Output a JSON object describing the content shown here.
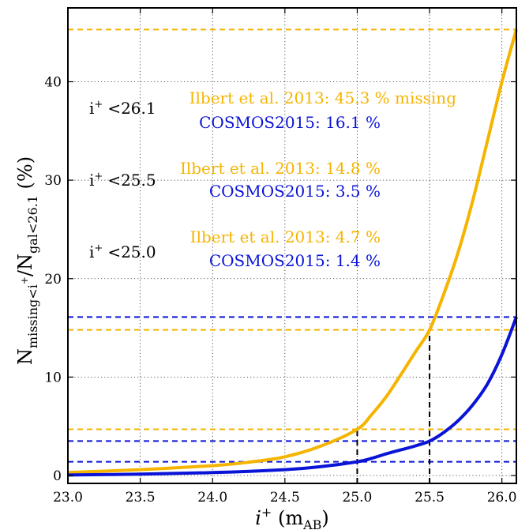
{
  "chart_data": {
    "type": "line",
    "xlabel": {
      "main": "i",
      "sup": "+",
      "rest": " (m",
      "sub": "AB",
      "close": ")"
    },
    "ylabel": {
      "n1": "N",
      "sub1": "missing<i",
      "sup1": "+",
      "slash": "/N",
      "sub2": "gal<26.1",
      "unit": " (%)"
    },
    "xlim": [
      23.0,
      26.1
    ],
    "ylim": [
      -0.8,
      47.5
    ],
    "xticks": [
      "23.0",
      "23.5",
      "24.0",
      "24.5",
      "25.0",
      "25.5",
      "26.0"
    ],
    "yticks": [
      "0",
      "10",
      "20",
      "30",
      "40"
    ],
    "grid": true,
    "colors": {
      "ilbert": "#f5b400",
      "cosmos": "#0a14d6",
      "black": "#000000"
    },
    "series": [
      {
        "name": "Ilbert et al. 2013",
        "color": "#f5b400",
        "points": [
          [
            23.0,
            0.3
          ],
          [
            23.5,
            0.6
          ],
          [
            24.0,
            1.0
          ],
          [
            24.25,
            1.35
          ],
          [
            24.5,
            1.9
          ],
          [
            24.75,
            3.0
          ],
          [
            25.0,
            4.7
          ],
          [
            25.1,
            6.2
          ],
          [
            25.2,
            8.0
          ],
          [
            25.3,
            10.2
          ],
          [
            25.4,
            12.5
          ],
          [
            25.5,
            14.8
          ],
          [
            25.6,
            18.5
          ],
          [
            25.7,
            22.8
          ],
          [
            25.8,
            28.0
          ],
          [
            25.9,
            34.0
          ],
          [
            26.0,
            40.0
          ],
          [
            26.1,
            45.3
          ]
        ]
      },
      {
        "name": "COSMOS2015",
        "color": "#0a14d6",
        "points": [
          [
            23.0,
            0.05
          ],
          [
            23.5,
            0.15
          ],
          [
            24.0,
            0.3
          ],
          [
            24.5,
            0.6
          ],
          [
            24.75,
            0.9
          ],
          [
            25.0,
            1.4
          ],
          [
            25.1,
            1.75
          ],
          [
            25.2,
            2.2
          ],
          [
            25.3,
            2.6
          ],
          [
            25.4,
            3.0
          ],
          [
            25.5,
            3.5
          ],
          [
            25.6,
            4.4
          ],
          [
            25.7,
            5.6
          ],
          [
            25.8,
            7.2
          ],
          [
            25.9,
            9.3
          ],
          [
            26.0,
            12.3
          ],
          [
            26.1,
            16.1
          ]
        ]
      }
    ],
    "hlines": [
      {
        "y": 45.3,
        "color": "#f5b400"
      },
      {
        "y": 16.1,
        "color": "#0a14d6"
      },
      {
        "y": 14.8,
        "color": "#f5b400"
      },
      {
        "y": 4.7,
        "color": "#f5b400"
      },
      {
        "y": 3.5,
        "color": "#0a14d6"
      },
      {
        "y": 1.4,
        "color": "#0a14d6"
      }
    ],
    "vlines": [
      {
        "x": 25.0,
        "ytop": 4.7,
        "color": "#000000"
      },
      {
        "x": 25.5,
        "ytop": 14.8,
        "color": "#000000"
      }
    ],
    "annotations": [
      {
        "cut": "<26.1",
        "ilbert": "Ilbert et al. 2013: 45.3 % missing",
        "cosmos": "COSMOS2015: 16.1 %"
      },
      {
        "cut": "<25.5",
        "ilbert": "Ilbert et al. 2013: 14.8 %",
        "cosmos": "COSMOS2015: 3.5 %"
      },
      {
        "cut": "<25.0",
        "ilbert": "Ilbert et al. 2013: 4.7 %",
        "cosmos": "COSMOS2015: 1.4 %"
      }
    ]
  }
}
